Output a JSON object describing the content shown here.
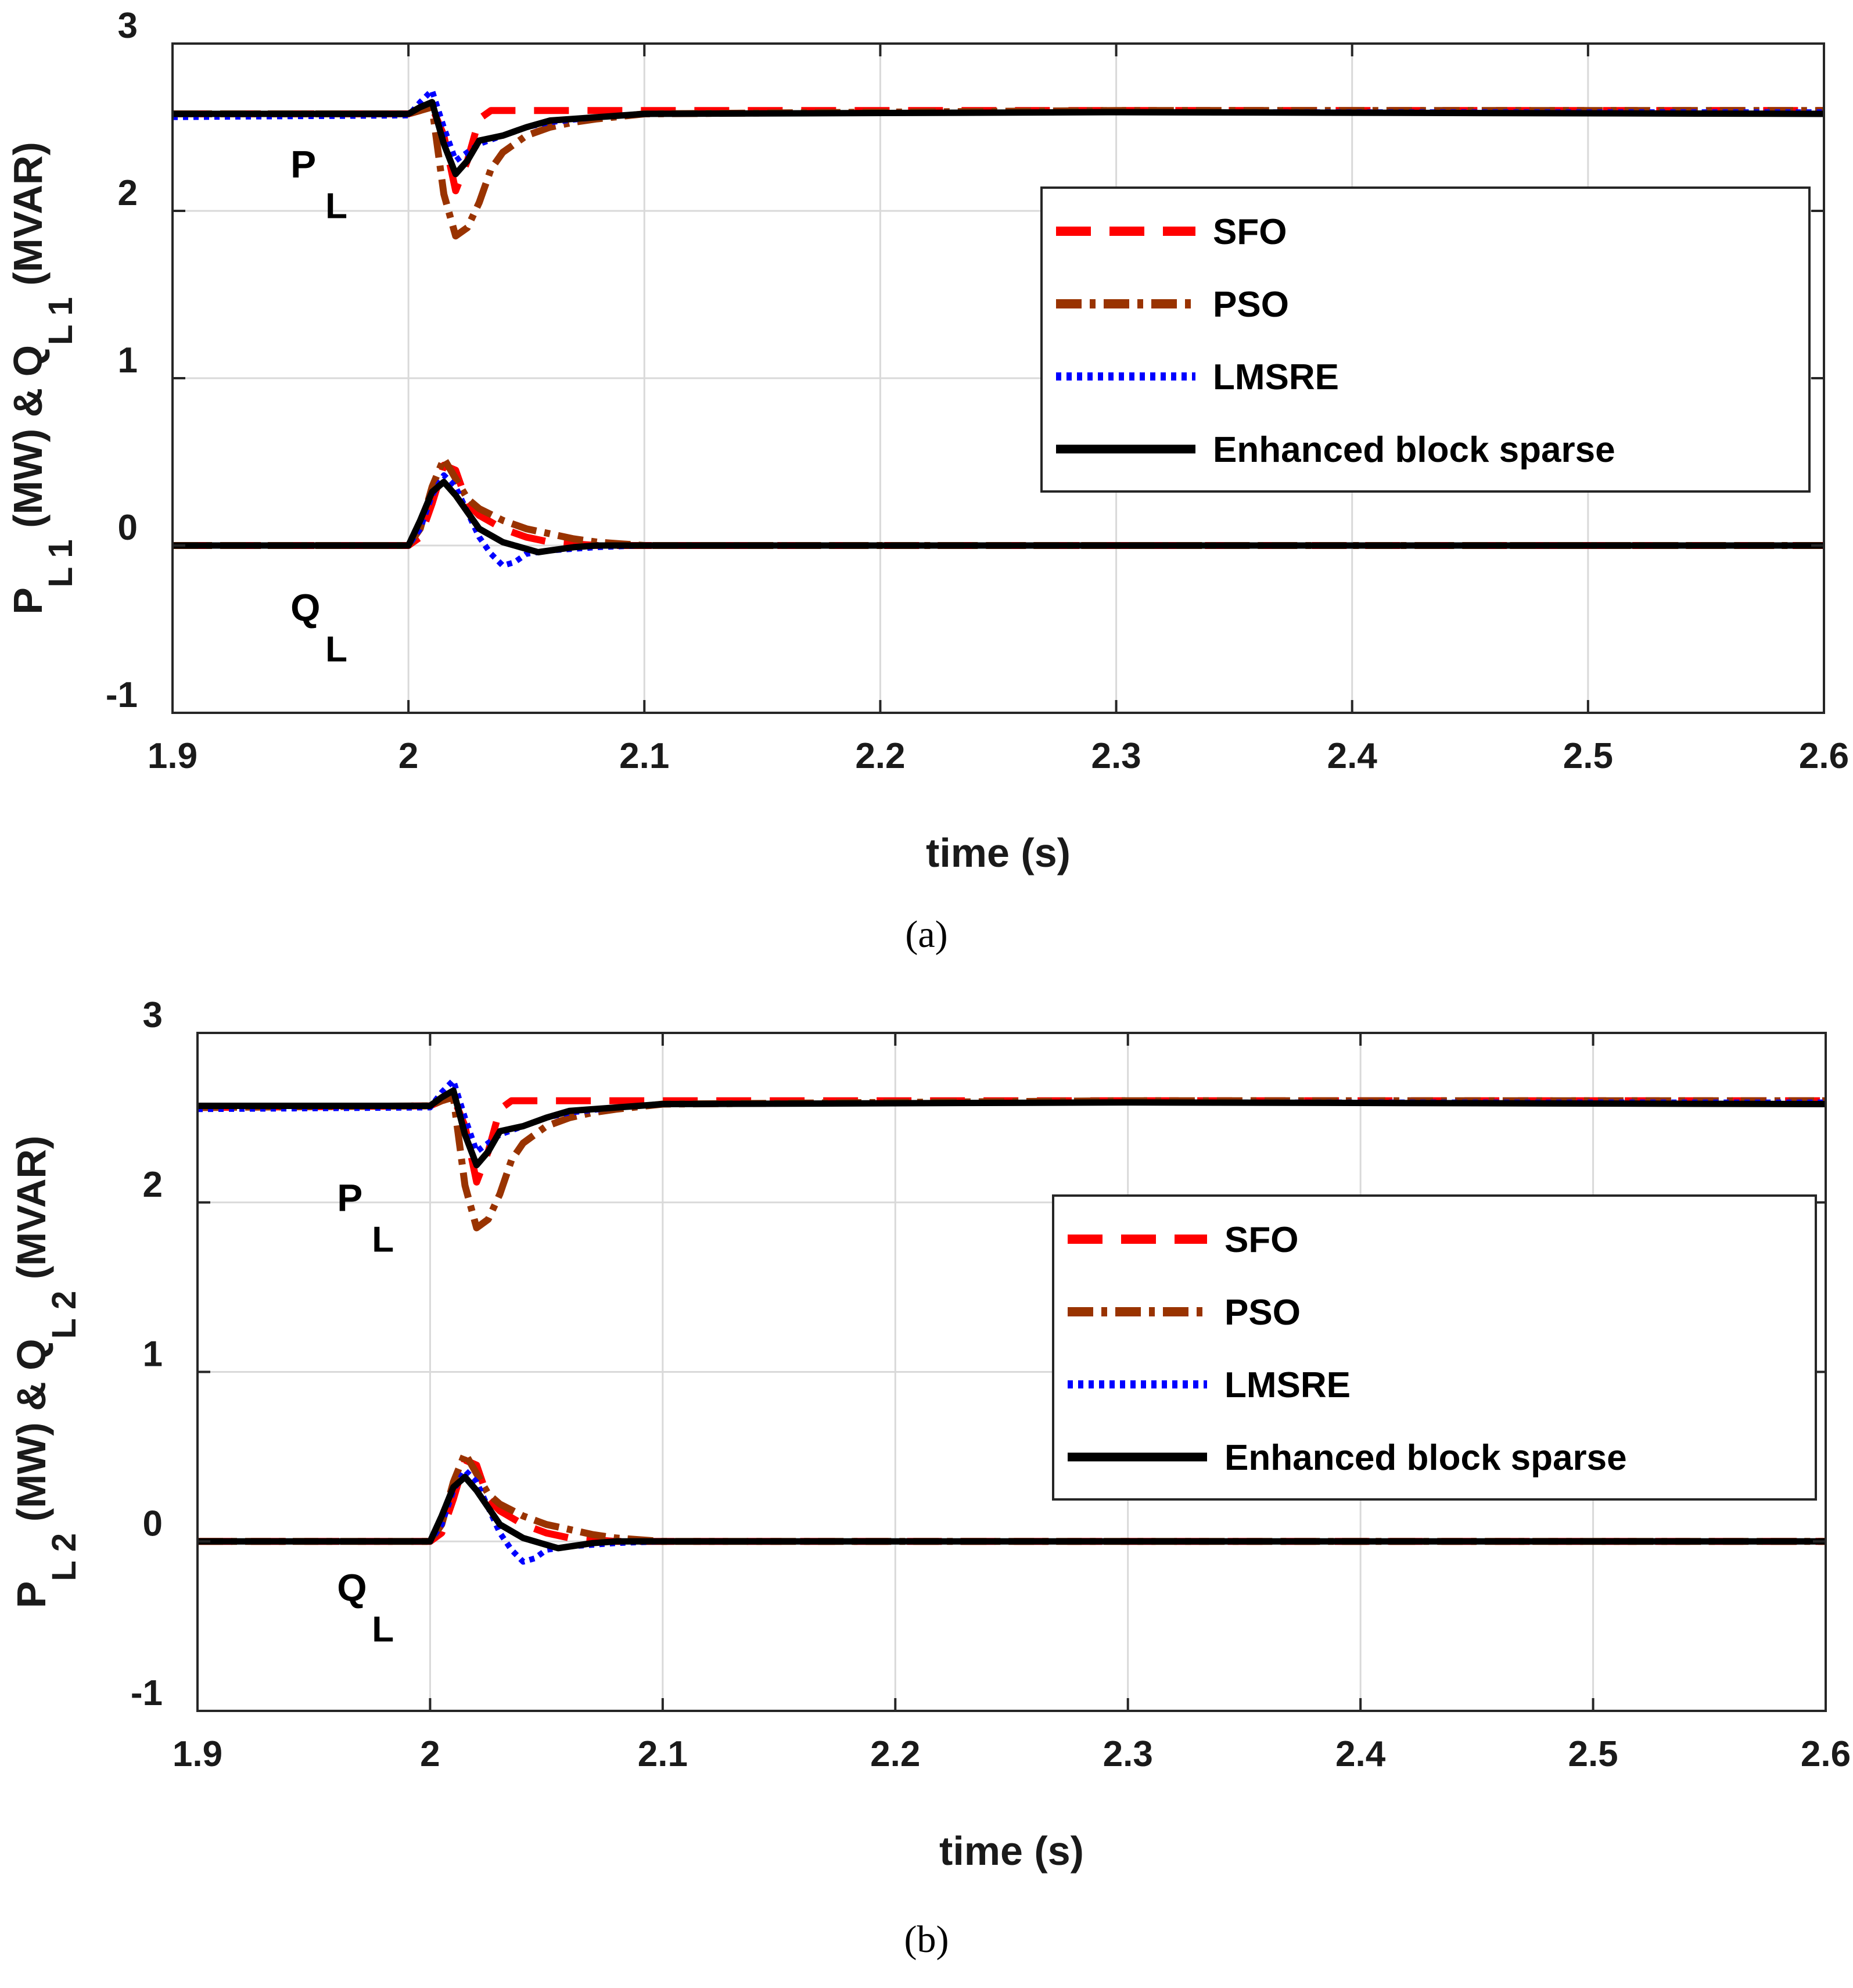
{
  "colors": {
    "SFO": "#ff0000",
    "PSO": "#993300",
    "LMSRE": "#0000ff",
    "Enhanced block sparse": "#000000"
  },
  "chart_data": [
    {
      "type": "line",
      "caption": "(a)",
      "xlabel": "time (s)",
      "ylabel_parts": [
        "P",
        "L1",
        " (MW) & Q",
        "L1",
        " (MVAR)"
      ],
      "xlim": [
        1.9,
        2.6
      ],
      "ylim": [
        -1,
        3
      ],
      "xticks": [
        "1.9",
        "2",
        "2.1",
        "2.2",
        "2.3",
        "2.4",
        "2.5",
        "2.6"
      ],
      "yticks": [
        "-1",
        "0",
        "1",
        "2",
        "3"
      ],
      "annotations": [
        {
          "main": "P",
          "sub": "L",
          "x": 1.95,
          "y": 2.2
        },
        {
          "main": "Q",
          "sub": "L",
          "x": 1.95,
          "y": -0.45
        }
      ],
      "legend": [
        "SFO",
        "PSO",
        "LMSRE",
        "Enhanced block sparse"
      ],
      "legend_position": "right",
      "series": [
        {
          "name": "SFO",
          "group": "P",
          "x": [
            1.9,
            2.0,
            2.005,
            2.01,
            2.015,
            2.02,
            2.025,
            2.03,
            2.035,
            2.04,
            2.05,
            2.06,
            2.08,
            2.1,
            2.3,
            2.6
          ],
          "values": [
            2.58,
            2.58,
            2.6,
            2.62,
            2.45,
            2.12,
            2.3,
            2.55,
            2.6,
            2.6,
            2.6,
            2.6,
            2.6,
            2.6,
            2.6,
            2.6
          ]
        },
        {
          "name": "PSO",
          "group": "P",
          "x": [
            1.9,
            2.0,
            2.005,
            2.01,
            2.015,
            2.02,
            2.025,
            2.03,
            2.035,
            2.04,
            2.05,
            2.06,
            2.07,
            2.08,
            2.1,
            2.3,
            2.6
          ],
          "values": [
            2.58,
            2.58,
            2.6,
            2.62,
            2.1,
            1.85,
            1.9,
            2.05,
            2.25,
            2.35,
            2.45,
            2.5,
            2.53,
            2.55,
            2.58,
            2.6,
            2.6
          ]
        },
        {
          "name": "LMSRE",
          "group": "P",
          "x": [
            1.9,
            2.0,
            2.005,
            2.01,
            2.015,
            2.02,
            2.025,
            2.03,
            2.04,
            2.05,
            2.06,
            2.08,
            2.1,
            2.3,
            2.6
          ],
          "values": [
            2.56,
            2.57,
            2.65,
            2.72,
            2.5,
            2.3,
            2.35,
            2.4,
            2.45,
            2.5,
            2.53,
            2.56,
            2.58,
            2.59,
            2.59
          ]
        },
        {
          "name": "Enhanced block sparse",
          "group": "P",
          "x": [
            1.9,
            2.0,
            2.005,
            2.01,
            2.015,
            2.02,
            2.025,
            2.03,
            2.04,
            2.05,
            2.06,
            2.08,
            2.1,
            2.3,
            2.6
          ],
          "values": [
            2.58,
            2.58,
            2.62,
            2.65,
            2.4,
            2.22,
            2.3,
            2.42,
            2.45,
            2.5,
            2.54,
            2.56,
            2.58,
            2.59,
            2.58
          ]
        },
        {
          "name": "SFO",
          "group": "Q",
          "x": [
            1.9,
            2.0,
            2.005,
            2.01,
            2.015,
            2.02,
            2.025,
            2.03,
            2.04,
            2.05,
            2.06,
            2.07,
            2.08,
            2.1,
            2.3,
            2.6
          ],
          "values": [
            0.0,
            0.0,
            0.05,
            0.25,
            0.48,
            0.45,
            0.25,
            0.18,
            0.1,
            0.05,
            0.02,
            0.01,
            0.0,
            0.0,
            0.0,
            0.0
          ]
        },
        {
          "name": "PSO",
          "group": "Q",
          "x": [
            1.9,
            2.0,
            2.005,
            2.01,
            2.015,
            2.02,
            2.025,
            2.03,
            2.04,
            2.05,
            2.06,
            2.07,
            2.08,
            2.09,
            2.1,
            2.3,
            2.6
          ],
          "values": [
            0.0,
            0.0,
            0.1,
            0.35,
            0.52,
            0.4,
            0.28,
            0.22,
            0.15,
            0.1,
            0.07,
            0.04,
            0.02,
            0.01,
            0.0,
            0.0,
            0.0
          ]
        },
        {
          "name": "LMSRE",
          "group": "Q",
          "x": [
            1.9,
            2.0,
            2.005,
            2.01,
            2.015,
            2.02,
            2.025,
            2.03,
            2.035,
            2.04,
            2.045,
            2.05,
            2.06,
            2.07,
            2.08,
            2.1,
            2.3,
            2.6
          ],
          "values": [
            0.0,
            0.0,
            0.1,
            0.3,
            0.42,
            0.35,
            0.2,
            0.05,
            -0.05,
            -0.12,
            -0.1,
            -0.05,
            -0.03,
            -0.02,
            -0.01,
            0.0,
            0.0,
            0.0
          ]
        },
        {
          "name": "Enhanced block sparse",
          "group": "Q",
          "x": [
            1.9,
            2.0,
            2.005,
            2.01,
            2.015,
            2.02,
            2.025,
            2.03,
            2.04,
            2.05,
            2.055,
            2.06,
            2.07,
            2.08,
            2.1,
            2.3,
            2.6
          ],
          "values": [
            0.0,
            0.0,
            0.15,
            0.32,
            0.38,
            0.3,
            0.2,
            0.1,
            0.02,
            -0.02,
            -0.04,
            -0.03,
            -0.01,
            0.0,
            0.0,
            0.0,
            0.0
          ]
        }
      ]
    },
    {
      "type": "line",
      "caption": "(b)",
      "xlabel": "time (s)",
      "ylabel_parts": [
        "P",
        "L2",
        " (MW) & Q",
        "L2",
        " (MVAR)"
      ],
      "xlim": [
        1.9,
        2.6
      ],
      "ylim": [
        -1,
        3
      ],
      "xticks": [
        "1.9",
        "2",
        "2.1",
        "2.2",
        "2.3",
        "2.4",
        "2.5",
        "2.6"
      ],
      "yticks": [
        "-1",
        "0",
        "1",
        "2",
        "3"
      ],
      "annotations": [
        {
          "main": "P",
          "sub": "L",
          "x": 1.96,
          "y": 1.95
        },
        {
          "main": "Q",
          "sub": "L",
          "x": 1.96,
          "y": -0.35
        }
      ],
      "legend": [
        "SFO",
        "PSO",
        "LMSRE",
        "Enhanced block sparse"
      ],
      "legend_position": "right",
      "series": [
        {
          "name": "SFO",
          "group": "P",
          "x": [
            1.9,
            2.0,
            2.005,
            2.01,
            2.015,
            2.02,
            2.025,
            2.03,
            2.035,
            2.04,
            2.05,
            2.06,
            2.08,
            2.1,
            2.3,
            2.6
          ],
          "values": [
            2.56,
            2.57,
            2.6,
            2.62,
            2.45,
            2.12,
            2.3,
            2.55,
            2.6,
            2.6,
            2.6,
            2.6,
            2.6,
            2.6,
            2.6,
            2.6
          ]
        },
        {
          "name": "PSO",
          "group": "P",
          "x": [
            1.9,
            2.0,
            2.005,
            2.01,
            2.015,
            2.02,
            2.025,
            2.03,
            2.035,
            2.04,
            2.05,
            2.06,
            2.07,
            2.08,
            2.1,
            2.3,
            2.6
          ],
          "values": [
            2.56,
            2.57,
            2.6,
            2.62,
            2.1,
            1.85,
            1.9,
            2.05,
            2.25,
            2.35,
            2.45,
            2.5,
            2.53,
            2.55,
            2.58,
            2.6,
            2.6
          ]
        },
        {
          "name": "LMSRE",
          "group": "P",
          "x": [
            1.9,
            2.0,
            2.005,
            2.01,
            2.015,
            2.02,
            2.025,
            2.03,
            2.04,
            2.05,
            2.06,
            2.08,
            2.1,
            2.3,
            2.6
          ],
          "values": [
            2.55,
            2.56,
            2.65,
            2.72,
            2.5,
            2.3,
            2.35,
            2.4,
            2.45,
            2.5,
            2.53,
            2.56,
            2.58,
            2.59,
            2.59
          ]
        },
        {
          "name": "Enhanced block sparse",
          "group": "P",
          "x": [
            1.9,
            2.0,
            2.005,
            2.01,
            2.015,
            2.02,
            2.025,
            2.03,
            2.04,
            2.05,
            2.06,
            2.08,
            2.1,
            2.3,
            2.6
          ],
          "values": [
            2.57,
            2.57,
            2.62,
            2.66,
            2.4,
            2.22,
            2.3,
            2.42,
            2.45,
            2.5,
            2.54,
            2.56,
            2.58,
            2.59,
            2.58
          ]
        },
        {
          "name": "SFO",
          "group": "Q",
          "x": [
            1.9,
            2.0,
            2.005,
            2.01,
            2.015,
            2.02,
            2.025,
            2.03,
            2.04,
            2.05,
            2.06,
            2.07,
            2.08,
            2.1,
            2.3,
            2.6
          ],
          "values": [
            0.0,
            0.0,
            0.05,
            0.25,
            0.48,
            0.45,
            0.25,
            0.18,
            0.1,
            0.05,
            0.02,
            0.01,
            0.0,
            0.0,
            0.0,
            0.0
          ]
        },
        {
          "name": "PSO",
          "group": "Q",
          "x": [
            1.9,
            2.0,
            2.005,
            2.01,
            2.015,
            2.02,
            2.025,
            2.03,
            2.04,
            2.05,
            2.06,
            2.07,
            2.08,
            2.09,
            2.1,
            2.3,
            2.6
          ],
          "values": [
            0.0,
            0.0,
            0.1,
            0.35,
            0.52,
            0.4,
            0.28,
            0.22,
            0.15,
            0.1,
            0.07,
            0.04,
            0.02,
            0.01,
            0.0,
            0.0,
            0.0
          ]
        },
        {
          "name": "LMSRE",
          "group": "Q",
          "x": [
            1.9,
            2.0,
            2.005,
            2.01,
            2.015,
            2.02,
            2.025,
            2.03,
            2.035,
            2.04,
            2.045,
            2.05,
            2.06,
            2.07,
            2.08,
            2.1,
            2.3,
            2.6
          ],
          "values": [
            0.0,
            0.0,
            0.1,
            0.3,
            0.42,
            0.35,
            0.2,
            0.05,
            -0.05,
            -0.12,
            -0.1,
            -0.05,
            -0.03,
            -0.02,
            -0.01,
            0.0,
            0.0,
            0.0
          ]
        },
        {
          "name": "Enhanced block sparse",
          "group": "Q",
          "x": [
            1.9,
            2.0,
            2.005,
            2.01,
            2.015,
            2.02,
            2.025,
            2.03,
            2.04,
            2.05,
            2.055,
            2.06,
            2.07,
            2.08,
            2.1,
            2.3,
            2.6
          ],
          "values": [
            0.0,
            0.0,
            0.15,
            0.32,
            0.38,
            0.3,
            0.2,
            0.1,
            0.02,
            -0.02,
            -0.04,
            -0.03,
            -0.01,
            0.0,
            0.0,
            0.0,
            0.0
          ]
        }
      ]
    }
  ]
}
